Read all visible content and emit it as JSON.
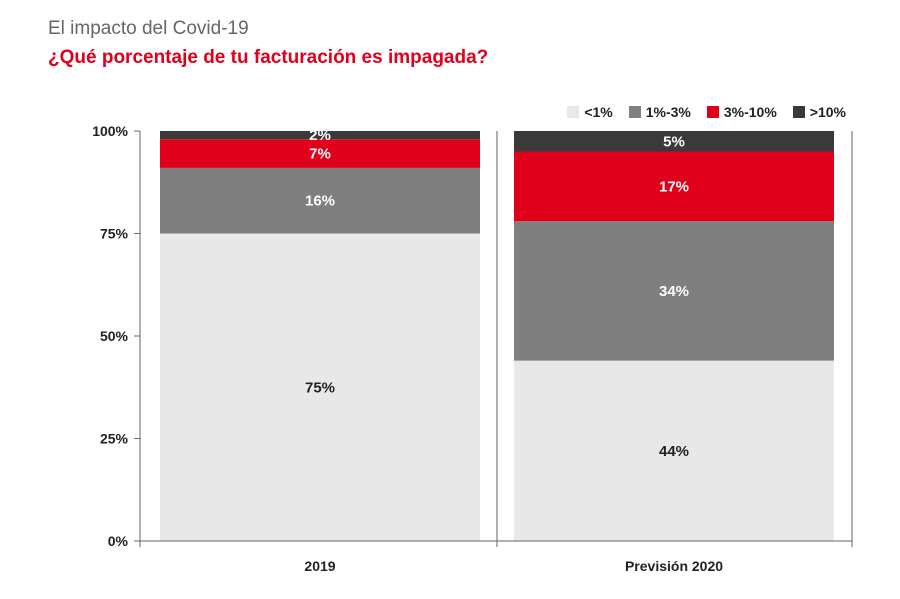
{
  "header": {
    "title": "El impacto del Covid-19",
    "question": "¿Qué porcentaje de tu facturación es impagada?"
  },
  "colors": {
    "lt1": "#e8e8e8",
    "r1_3": "#7f7f7f",
    "r3_10": "#e0001b",
    "gt10": "#3a3a3a",
    "axis": "#666666"
  },
  "chart_data": {
    "type": "bar",
    "stacked": true,
    "title": "¿Qué porcentaje de tu facturación es impagada?",
    "categories": [
      "2019",
      "Previsión 2020"
    ],
    "series": [
      {
        "name": "<1%",
        "color_key": "lt1",
        "values": [
          75,
          44
        ],
        "labels": [
          "75%",
          "44%"
        ],
        "label_color": "#222222"
      },
      {
        "name": "1%-3%",
        "color_key": "r1_3",
        "values": [
          16,
          34
        ],
        "labels": [
          "16%",
          "34%"
        ],
        "label_color": "#ffffff"
      },
      {
        "name": "3%-10%",
        "color_key": "r3_10",
        "values": [
          7,
          17
        ],
        "labels": [
          "7%",
          "17%"
        ],
        "label_color": "#ffffff"
      },
      {
        "name": ">10%",
        "color_key": "gt10",
        "values": [
          2,
          5
        ],
        "labels": [
          "2%",
          "5%"
        ],
        "label_color": "#ffffff"
      }
    ],
    "yticks": [
      0,
      25,
      50,
      75,
      100
    ],
    "ytick_labels": [
      "0%",
      "25%",
      "50%",
      "75%",
      "100%"
    ],
    "ylim": [
      0,
      100
    ],
    "legend_position": "top-right",
    "xlabel": "",
    "ylabel": ""
  }
}
